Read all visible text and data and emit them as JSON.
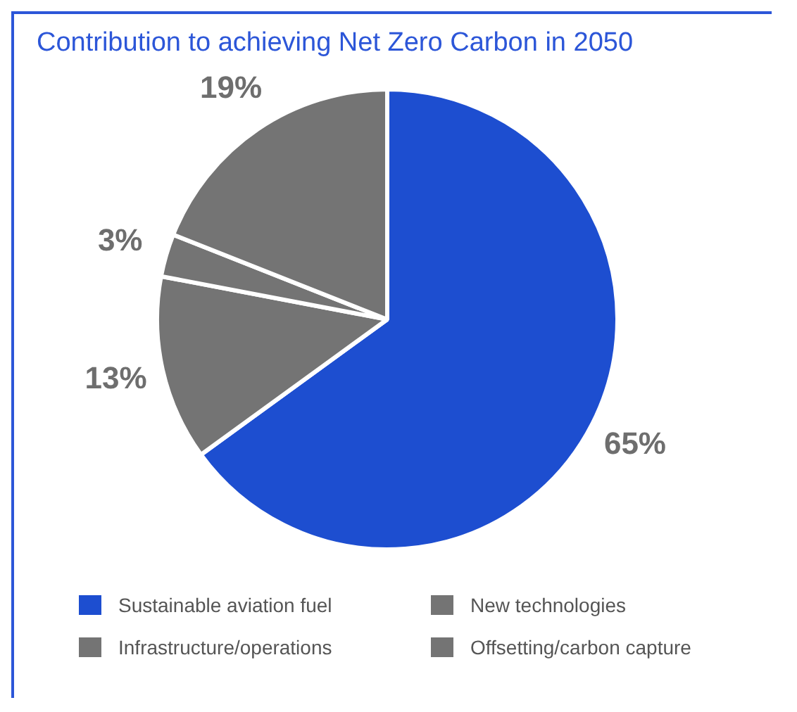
{
  "chart_data": {
    "type": "pie",
    "title": "Contribution to achieving Net Zero Carbon in 2050",
    "categories": [
      "Sustainable aviation fuel",
      "New technologies",
      "Infrastructure/operations",
      "Offsetting/carbon capture"
    ],
    "values": [
      65,
      13,
      3,
      19
    ],
    "colors": [
      "#1d4ed0",
      "#747474",
      "#747474",
      "#747474"
    ],
    "value_labels": [
      "65%",
      "13%",
      "3%",
      "19%"
    ],
    "legend": "bottom"
  }
}
